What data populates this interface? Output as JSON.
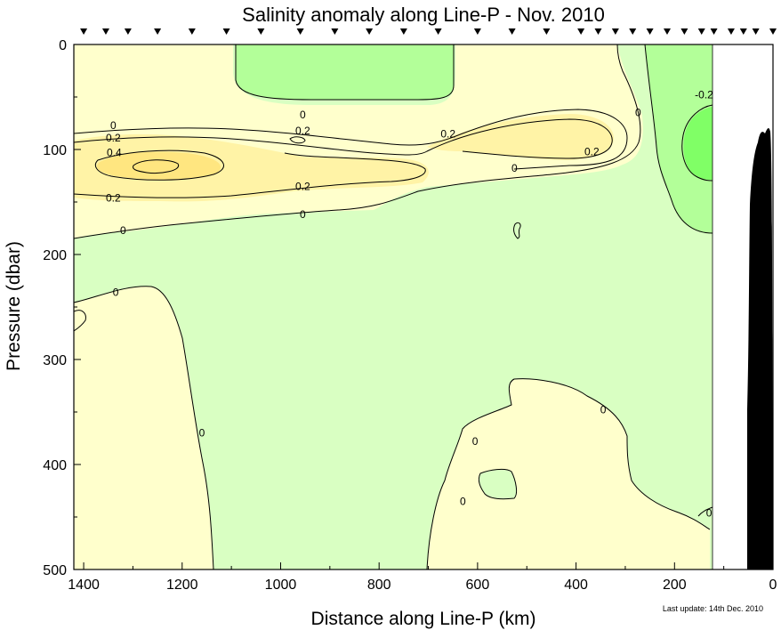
{
  "chart_data": {
    "type": "heatmap",
    "title": "Salinity anomaly along Line-P - Nov. 2010",
    "xlabel": "Distance along Line-P (km)",
    "ylabel": "Pressure (dbar)",
    "xlim": [
      1420,
      0
    ],
    "ylim": [
      0,
      500
    ],
    "x_axis_reversed": true,
    "y_axis_reversed": true,
    "x_ticks": [
      1400,
      1200,
      1000,
      800,
      600,
      400,
      200,
      0
    ],
    "y_ticks": [
      0,
      100,
      200,
      300,
      400,
      500
    ],
    "station_markers_km": [
      1400,
      1355,
      1310,
      1250,
      1180,
      1110,
      1040,
      960,
      890,
      820,
      750,
      680,
      600,
      530,
      460,
      390,
      355,
      320,
      285,
      250,
      215,
      180,
      145,
      120,
      85,
      60,
      35,
      0
    ],
    "contour_levels": [
      -0.2,
      0,
      0.2,
      0.4
    ],
    "contour_labels": [
      {
        "text": "0",
        "x": 1340,
        "y": 77
      },
      {
        "text": "0.2",
        "x": 1340,
        "y": 89
      },
      {
        "text": "0.4",
        "x": 1338,
        "y": 103
      },
      {
        "text": "0.2",
        "x": 1340,
        "y": 146
      },
      {
        "text": "0",
        "x": 1320,
        "y": 177
      },
      {
        "text": "0",
        "x": 1335,
        "y": 236
      },
      {
        "text": "0",
        "x": 955,
        "y": 67
      },
      {
        "text": "0.2",
        "x": 955,
        "y": 82
      },
      {
        "text": "0.2",
        "x": 955,
        "y": 135
      },
      {
        "text": "0",
        "x": 955,
        "y": 162
      },
      {
        "text": "0.2",
        "x": 660,
        "y": 85
      },
      {
        "text": "0",
        "x": 525,
        "y": 118
      },
      {
        "text": "0.2",
        "x": 368,
        "y": 102
      },
      {
        "text": "0",
        "x": 274,
        "y": 65
      },
      {
        "text": "-0.2",
        "x": 140,
        "y": 48
      },
      {
        "text": "0",
        "x": 1160,
        "y": 370
      },
      {
        "text": "0",
        "x": 605,
        "y": 378
      },
      {
        "text": "0",
        "x": 345,
        "y": 348
      },
      {
        "text": "0",
        "x": 630,
        "y": 435
      },
      {
        "text": "0",
        "x": 130,
        "y": 446
      }
    ],
    "colors": {
      "positive_0_0.2": "#ffffcc",
      "positive_0.2_0.4": "#fff3a6",
      "positive_above_0.4": "#ffe680",
      "negative_-0.2_0": "#d9ffc2",
      "negative_-0.4_-0.2": "#b3ff99",
      "negative_below_-0.4": "#80ff66",
      "bathymetry": "#000000"
    },
    "grid": false
  },
  "footnote": "Last update: 14th Dec. 2010"
}
